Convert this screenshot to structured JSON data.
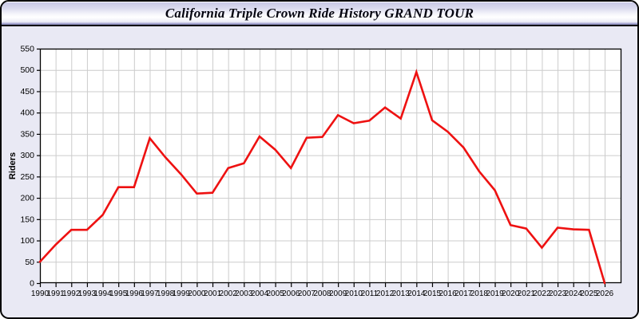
{
  "window": {
    "title": "California Triple Crown Ride History GRAND TOUR"
  },
  "colors": {
    "line": "#ee1111",
    "panel_background": "#e9e9f4",
    "plot_background": "#ffffff",
    "gridline": "#cccccc",
    "axis": "#000000",
    "titlebar_gradient_top": "#c7c7e5",
    "titlebar_gradient_bottom": "#9a9aca"
  },
  "chart_data": {
    "type": "line",
    "title": "California Triple Crown Ride History GRAND TOUR",
    "xlabel": "",
    "ylabel": "Riders",
    "grid": true,
    "legend_position": "none",
    "ylim": [
      0,
      550
    ],
    "ytick_step": 50,
    "yticks": [
      0,
      50,
      100,
      150,
      200,
      250,
      300,
      350,
      400,
      450,
      500,
      550
    ],
    "x": [
      1990,
      1991,
      1992,
      1993,
      1994,
      1995,
      1996,
      1997,
      1998,
      1999,
      2000,
      2001,
      2002,
      2003,
      2004,
      2005,
      2006,
      2007,
      2008,
      2009,
      2010,
      2011,
      2012,
      2013,
      2014,
      2015,
      2016,
      2017,
      2018,
      2019,
      2020,
      2021,
      2022,
      2023,
      2024,
      2025,
      2026
    ],
    "series": [
      {
        "name": "Riders",
        "color": "#ee1111",
        "values": [
          50,
          90,
          125,
          125,
          160,
          225,
          225,
          340,
          295,
          255,
          210,
          212,
          270,
          281,
          344,
          313,
          270,
          341,
          343,
          394,
          375,
          381,
          412,
          386,
          495,
          382,
          355,
          318,
          262,
          218,
          136,
          128,
          83,
          130,
          126,
          125,
          0
        ]
      }
    ]
  }
}
